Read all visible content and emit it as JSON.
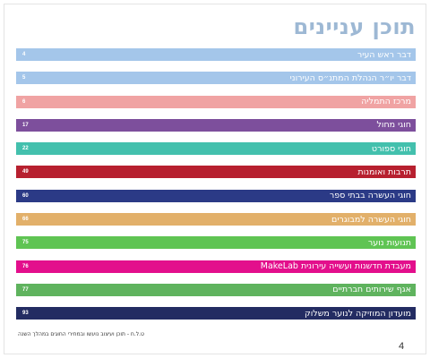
{
  "title": "תוכן עניינים",
  "entries": [
    {
      "label": "דבר ראש העיר",
      "page": "4",
      "color": "#a4c6ea"
    },
    {
      "label": "דבר יו״ר הנהלת המתנ״ס העירוני",
      "page": "5",
      "color": "#a4c6ea"
    },
    {
      "label": "מרכז התמליה",
      "page": "6",
      "color": "#f0a3a3"
    },
    {
      "label": "חוגי מחול",
      "page": "17",
      "color": "#7d4f9c"
    },
    {
      "label": "חוגי ספורט",
      "page": "22",
      "color": "#43c0ad"
    },
    {
      "label": "תרבות ואומנות",
      "page": "49",
      "color": "#b7202f"
    },
    {
      "label": "חוגי העשרה בבתי ספר",
      "page": "60",
      "color": "#2b3a86"
    },
    {
      "label": "חוגי העשרה למבוגרים",
      "page": "66",
      "color": "#e2b06a"
    },
    {
      "label": "תנועות נוער",
      "page": "75",
      "color": "#5fc453"
    },
    {
      "label": "מעבדת חדשנות ועשייה עירונית MakeLab",
      "page": "76",
      "color": "#e30f8c"
    },
    {
      "label": "אגף שירותים חברתיים",
      "page": "77",
      "color": "#5fb35e"
    },
    {
      "label": "מועדון המוזיקה לנוער משלוק",
      "page": "93",
      "color": "#232c62"
    }
  ],
  "footnote": "ט.ל.ח - תוכן ועיצוב נועשו ובמחירי החוגים במהלך השנה",
  "page_number": "4"
}
